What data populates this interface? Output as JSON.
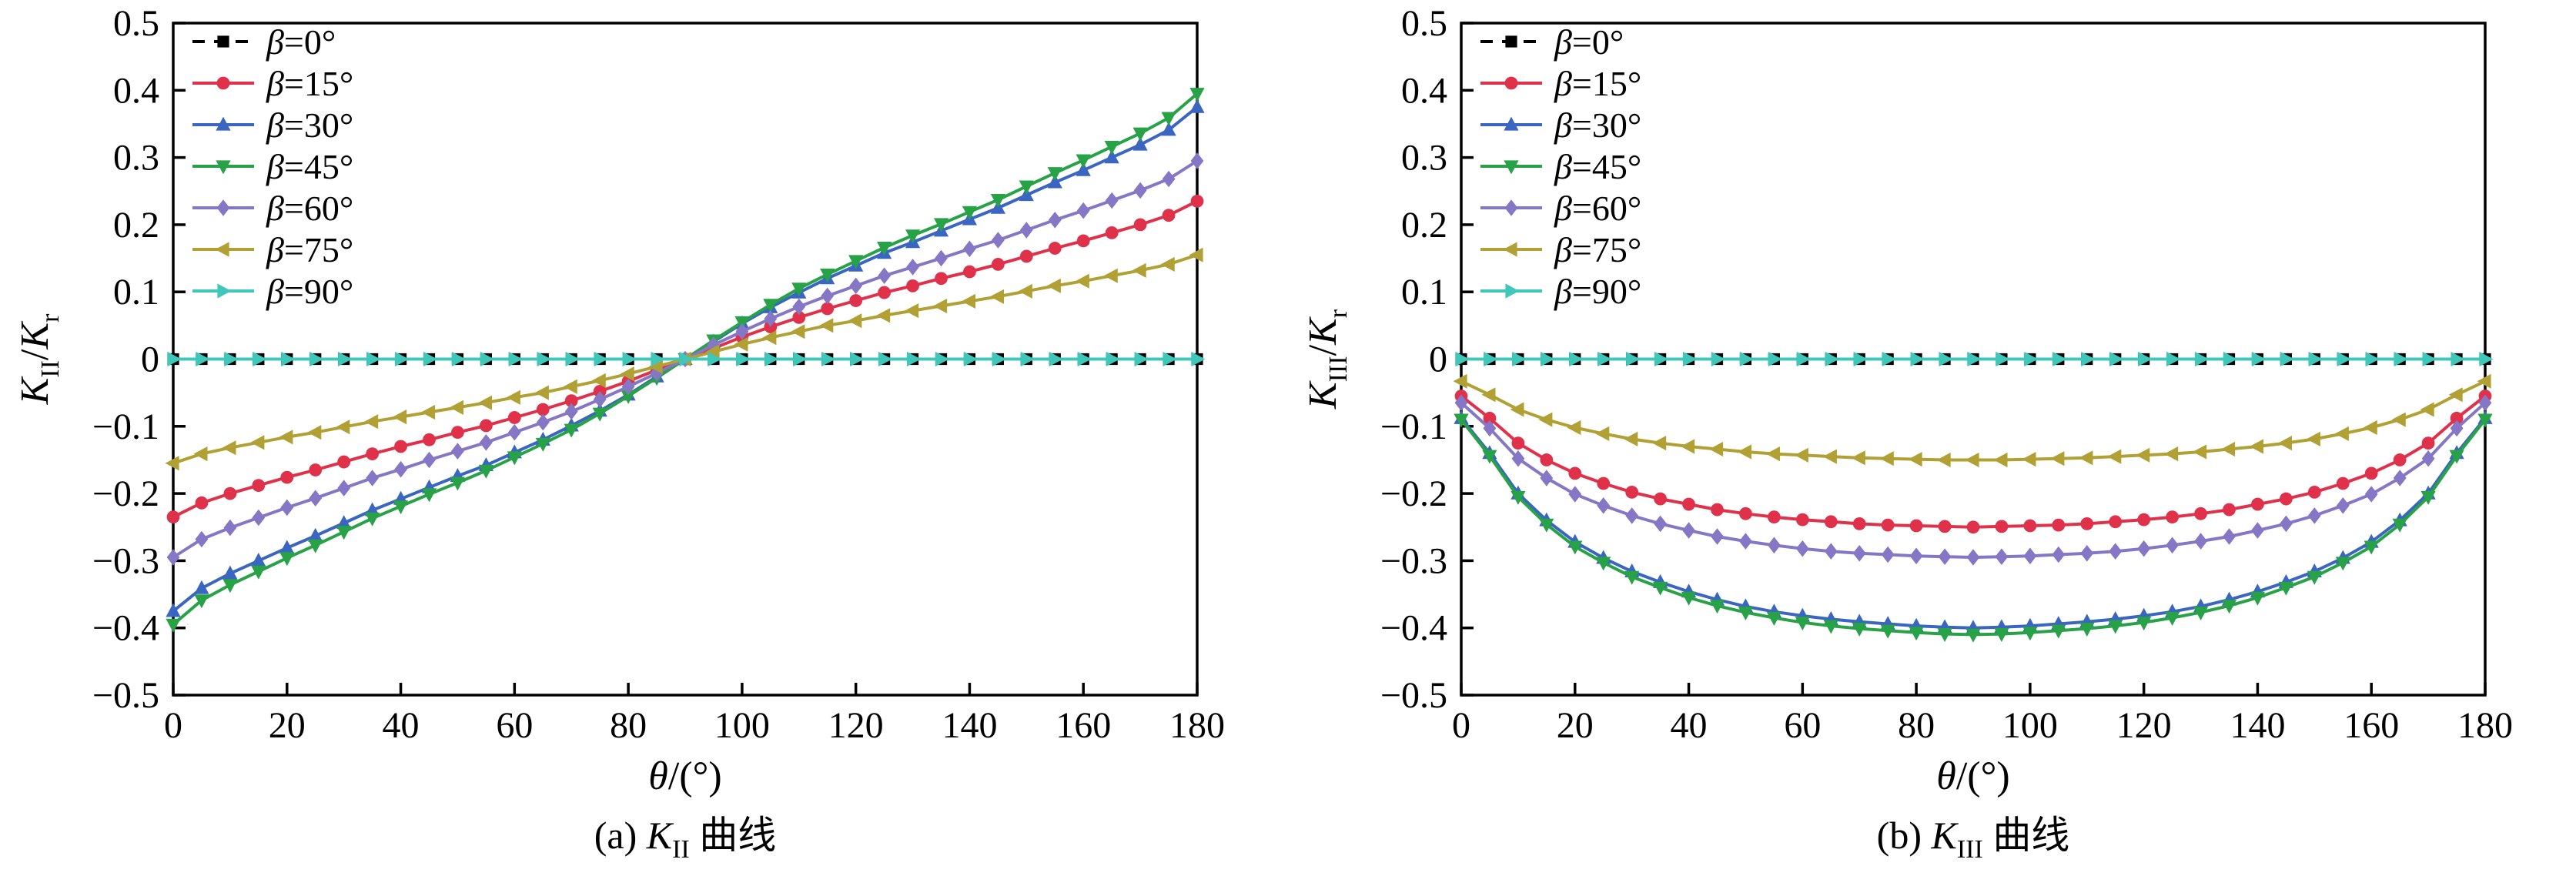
{
  "page": {
    "background": "#ffffff"
  },
  "chart_data": [
    {
      "id": "a",
      "type": "line",
      "title": "",
      "caption": {
        "prefix": "(a) ",
        "k": "K",
        "sub": "II",
        "suffix": " 曲线",
        "full": "(a) K_II 曲线"
      },
      "xlabel": {
        "theta": "θ",
        "rest": "/(°)",
        "full": "θ/(°)"
      },
      "ylabel": {
        "k1": "K",
        "sub1": "II",
        "slash": "/",
        "k2": "K",
        "sub2": "r",
        "full": "K_II/K_r"
      },
      "xlim": [
        0,
        180
      ],
      "ylim": [
        -0.5,
        0.5
      ],
      "grid": false,
      "legend_position": "upper left",
      "xticks": {
        "values": [
          0,
          20,
          40,
          60,
          80,
          100,
          120,
          140,
          160,
          180
        ],
        "labels": [
          "0",
          "20",
          "40",
          "60",
          "80",
          "100",
          "120",
          "140",
          "160",
          "180"
        ]
      },
      "yticks": {
        "values": [
          0.5,
          0.4,
          0.3,
          0.2,
          0.1,
          0,
          -0.1,
          -0.2,
          -0.3,
          -0.4,
          -0.5
        ],
        "labels": [
          "0.5",
          "0.4",
          "0.3",
          "0.2",
          "0.1",
          "0",
          "−0.1",
          "−0.2",
          "−0.3",
          "−0.4",
          "−0.5"
        ]
      },
      "x": [
        0,
        5,
        10,
        15,
        20,
        25,
        30,
        35,
        40,
        45,
        50,
        55,
        60,
        65,
        70,
        75,
        80,
        85,
        90,
        95,
        100,
        105,
        110,
        115,
        120,
        125,
        130,
        135,
        140,
        145,
        150,
        155,
        160,
        165,
        170,
        175,
        180
      ],
      "series": [
        {
          "id": "beta-0",
          "label": "β=0°",
          "label_beta": "β",
          "label_rest": "=0°",
          "color": "#000000",
          "marker": "square",
          "dash": "16 12",
          "values": [
            0,
            0,
            0,
            0,
            0,
            0,
            0,
            0,
            0,
            0,
            0,
            0,
            0,
            0,
            0,
            0,
            0,
            0,
            0,
            0,
            0,
            0,
            0,
            0,
            0,
            0,
            0,
            0,
            0,
            0,
            0,
            0,
            0,
            0,
            0,
            0,
            0
          ]
        },
        {
          "id": "beta-15",
          "label": "β=15°",
          "label_beta": "β",
          "label_rest": "=15°",
          "color": "#e0314b",
          "marker": "circle",
          "dash": null,
          "values": [
            -0.235,
            -0.214,
            -0.2,
            -0.188,
            -0.176,
            -0.165,
            -0.153,
            -0.141,
            -0.13,
            -0.12,
            -0.109,
            -0.099,
            -0.087,
            -0.075,
            -0.062,
            -0.048,
            -0.033,
            -0.016,
            0,
            0.016,
            0.033,
            0.048,
            0.062,
            0.075,
            0.087,
            0.099,
            0.109,
            0.12,
            0.13,
            0.141,
            0.153,
            0.165,
            0.176,
            0.188,
            0.2,
            0.214,
            0.235
          ]
        },
        {
          "id": "beta-30",
          "label": "β=30°",
          "label_beta": "β",
          "label_rest": "=30°",
          "color": "#3a66c2",
          "marker": "triangle-up",
          "dash": null,
          "values": [
            -0.375,
            -0.341,
            -0.319,
            -0.3,
            -0.281,
            -0.263,
            -0.244,
            -0.225,
            -0.208,
            -0.191,
            -0.174,
            -0.158,
            -0.139,
            -0.12,
            -0.099,
            -0.077,
            -0.053,
            -0.026,
            0,
            0.026,
            0.053,
            0.077,
            0.099,
            0.12,
            0.139,
            0.158,
            0.174,
            0.191,
            0.208,
            0.225,
            0.244,
            0.263,
            0.281,
            0.3,
            0.319,
            0.341,
            0.375
          ]
        },
        {
          "id": "beta-45",
          "label": "β=45°",
          "label_beta": "β",
          "label_rest": "=45°",
          "color": "#27a247",
          "marker": "triangle-down",
          "dash": null,
          "values": [
            -0.395,
            -0.359,
            -0.336,
            -0.316,
            -0.296,
            -0.277,
            -0.257,
            -0.237,
            -0.219,
            -0.201,
            -0.184,
            -0.166,
            -0.146,
            -0.126,
            -0.105,
            -0.081,
            -0.055,
            -0.028,
            0,
            0.028,
            0.055,
            0.081,
            0.105,
            0.126,
            0.146,
            0.166,
            0.184,
            0.201,
            0.219,
            0.237,
            0.257,
            0.277,
            0.296,
            0.316,
            0.336,
            0.359,
            0.395
          ]
        },
        {
          "id": "beta-60",
          "label": "β=60°",
          "label_beta": "β",
          "label_rest": "=60°",
          "color": "#8577c5",
          "marker": "diamond",
          "dash": null,
          "values": [
            -0.295,
            -0.268,
            -0.251,
            -0.236,
            -0.221,
            -0.207,
            -0.192,
            -0.177,
            -0.164,
            -0.15,
            -0.137,
            -0.124,
            -0.109,
            -0.094,
            -0.078,
            -0.06,
            -0.041,
            -0.021,
            0,
            0.021,
            0.041,
            0.06,
            0.078,
            0.094,
            0.109,
            0.124,
            0.137,
            0.15,
            0.164,
            0.177,
            0.192,
            0.207,
            0.221,
            0.236,
            0.251,
            0.268,
            0.295
          ]
        },
        {
          "id": "beta-75",
          "label": "β=75°",
          "label_beta": "β",
          "label_rest": "=75°",
          "color": "#b1a033",
          "marker": "triangle-left",
          "dash": null,
          "values": [
            -0.155,
            -0.141,
            -0.132,
            -0.124,
            -0.116,
            -0.109,
            -0.101,
            -0.093,
            -0.086,
            -0.079,
            -0.072,
            -0.065,
            -0.057,
            -0.05,
            -0.041,
            -0.032,
            -0.022,
            -0.011,
            0,
            0.011,
            0.022,
            0.032,
            0.041,
            0.05,
            0.057,
            0.065,
            0.072,
            0.079,
            0.086,
            0.093,
            0.101,
            0.109,
            0.116,
            0.124,
            0.132,
            0.141,
            0.155
          ]
        },
        {
          "id": "beta-90",
          "label": "β=90°",
          "label_beta": "β",
          "label_rest": "=90°",
          "color": "#3fc7b9",
          "marker": "triangle-right",
          "dash": null,
          "values": [
            0,
            0,
            0,
            0,
            0,
            0,
            0,
            0,
            0,
            0,
            0,
            0,
            0,
            0,
            0,
            0,
            0,
            0,
            0,
            0,
            0,
            0,
            0,
            0,
            0,
            0,
            0,
            0,
            0,
            0,
            0,
            0,
            0,
            0,
            0,
            0,
            0
          ]
        }
      ]
    },
    {
      "id": "b",
      "type": "line",
      "title": "",
      "caption": {
        "prefix": "(b) ",
        "k": "K",
        "sub": "III",
        "suffix": " 曲线",
        "full": "(b) K_III 曲线"
      },
      "xlabel": {
        "theta": "θ",
        "rest": "/(°)",
        "full": "θ/(°)"
      },
      "ylabel": {
        "k1": "K",
        "sub1": "III",
        "slash": "/",
        "k2": "K",
        "sub2": "r",
        "full": "K_III/K_r"
      },
      "xlim": [
        0,
        180
      ],
      "ylim": [
        -0.5,
        0.5
      ],
      "grid": false,
      "legend_position": "upper left",
      "xticks": {
        "values": [
          0,
          20,
          40,
          60,
          80,
          100,
          120,
          140,
          160,
          180
        ],
        "labels": [
          "0",
          "20",
          "40",
          "60",
          "80",
          "100",
          "120",
          "140",
          "160",
          "180"
        ]
      },
      "yticks": {
        "values": [
          0.5,
          0.4,
          0.3,
          0.2,
          0.1,
          0,
          -0.1,
          -0.2,
          -0.3,
          -0.4,
          -0.5
        ],
        "labels": [
          "0.5",
          "0.4",
          "0.3",
          "0.2",
          "0.1",
          "0",
          "−0.1",
          "−0.2",
          "−0.3",
          "−0.4",
          "−0.5"
        ]
      },
      "x": [
        0,
        5,
        10,
        15,
        20,
        25,
        30,
        35,
        40,
        45,
        50,
        55,
        60,
        65,
        70,
        75,
        80,
        85,
        90,
        95,
        100,
        105,
        110,
        115,
        120,
        125,
        130,
        135,
        140,
        145,
        150,
        155,
        160,
        165,
        170,
        175,
        180
      ],
      "series": [
        {
          "id": "beta-0",
          "label": "β=0°",
          "label_beta": "β",
          "label_rest": "=0°",
          "color": "#000000",
          "marker": "square",
          "dash": "16 12",
          "values": [
            0,
            0,
            0,
            0,
            0,
            0,
            0,
            0,
            0,
            0,
            0,
            0,
            0,
            0,
            0,
            0,
            0,
            0,
            0,
            0,
            0,
            0,
            0,
            0,
            0,
            0,
            0,
            0,
            0,
            0,
            0,
            0,
            0,
            0,
            0,
            0,
            0
          ]
        },
        {
          "id": "beta-15",
          "label": "β=15°",
          "label_beta": "β",
          "label_rest": "=15°",
          "color": "#e0314b",
          "marker": "circle",
          "dash": null,
          "values": [
            -0.055,
            -0.088,
            -0.125,
            -0.15,
            -0.17,
            -0.185,
            -0.198,
            -0.208,
            -0.216,
            -0.224,
            -0.23,
            -0.235,
            -0.239,
            -0.242,
            -0.245,
            -0.247,
            -0.248,
            -0.249,
            -0.25,
            -0.249,
            -0.248,
            -0.247,
            -0.245,
            -0.242,
            -0.239,
            -0.235,
            -0.23,
            -0.224,
            -0.216,
            -0.208,
            -0.198,
            -0.185,
            -0.17,
            -0.15,
            -0.125,
            -0.088,
            -0.055
          ]
        },
        {
          "id": "beta-30",
          "label": "β=30°",
          "label_beta": "β",
          "label_rest": "=30°",
          "color": "#3a66c2",
          "marker": "triangle-up",
          "dash": null,
          "values": [
            -0.088,
            -0.14,
            -0.2,
            -0.24,
            -0.272,
            -0.296,
            -0.316,
            -0.332,
            -0.346,
            -0.358,
            -0.368,
            -0.376,
            -0.382,
            -0.387,
            -0.391,
            -0.394,
            -0.397,
            -0.399,
            -0.4,
            -0.399,
            -0.397,
            -0.394,
            -0.391,
            -0.387,
            -0.382,
            -0.376,
            -0.368,
            -0.358,
            -0.346,
            -0.332,
            -0.316,
            -0.296,
            -0.272,
            -0.24,
            -0.2,
            -0.14,
            -0.088
          ]
        },
        {
          "id": "beta-45",
          "label": "β=45°",
          "label_beta": "β",
          "label_rest": "=45°",
          "color": "#27a247",
          "marker": "triangle-down",
          "dash": null,
          "values": [
            -0.09,
            -0.144,
            -0.205,
            -0.246,
            -0.279,
            -0.303,
            -0.324,
            -0.34,
            -0.355,
            -0.367,
            -0.377,
            -0.385,
            -0.392,
            -0.397,
            -0.401,
            -0.404,
            -0.407,
            -0.409,
            -0.41,
            -0.409,
            -0.407,
            -0.404,
            -0.401,
            -0.397,
            -0.392,
            -0.385,
            -0.377,
            -0.367,
            -0.355,
            -0.34,
            -0.324,
            -0.303,
            -0.279,
            -0.246,
            -0.205,
            -0.144,
            -0.09
          ]
        },
        {
          "id": "beta-60",
          "label": "β=60°",
          "label_beta": "β",
          "label_rest": "=60°",
          "color": "#8577c5",
          "marker": "diamond",
          "dash": null,
          "values": [
            -0.065,
            -0.103,
            -0.148,
            -0.177,
            -0.201,
            -0.218,
            -0.233,
            -0.245,
            -0.255,
            -0.264,
            -0.271,
            -0.277,
            -0.282,
            -0.286,
            -0.289,
            -0.291,
            -0.293,
            -0.294,
            -0.295,
            -0.294,
            -0.293,
            -0.291,
            -0.289,
            -0.286,
            -0.282,
            -0.277,
            -0.271,
            -0.264,
            -0.255,
            -0.245,
            -0.233,
            -0.218,
            -0.201,
            -0.177,
            -0.148,
            -0.103,
            -0.065
          ]
        },
        {
          "id": "beta-75",
          "label": "β=75°",
          "label_beta": "β",
          "label_rest": "=75°",
          "color": "#b1a033",
          "marker": "triangle-left",
          "dash": null,
          "values": [
            -0.033,
            -0.053,
            -0.075,
            -0.09,
            -0.102,
            -0.111,
            -0.119,
            -0.125,
            -0.13,
            -0.134,
            -0.138,
            -0.141,
            -0.143,
            -0.145,
            -0.147,
            -0.148,
            -0.149,
            -0.15,
            -0.15,
            -0.15,
            -0.149,
            -0.148,
            -0.147,
            -0.145,
            -0.143,
            -0.141,
            -0.138,
            -0.134,
            -0.13,
            -0.125,
            -0.119,
            -0.111,
            -0.102,
            -0.09,
            -0.075,
            -0.053,
            -0.033
          ]
        },
        {
          "id": "beta-90",
          "label": "β=90°",
          "label_beta": "β",
          "label_rest": "=90°",
          "color": "#3fc7b9",
          "marker": "triangle-right",
          "dash": null,
          "values": [
            0,
            0,
            0,
            0,
            0,
            0,
            0,
            0,
            0,
            0,
            0,
            0,
            0,
            0,
            0,
            0,
            0,
            0,
            0,
            0,
            0,
            0,
            0,
            0,
            0,
            0,
            0,
            0,
            0,
            0,
            0,
            0,
            0,
            0,
            0,
            0,
            0
          ]
        }
      ]
    }
  ]
}
